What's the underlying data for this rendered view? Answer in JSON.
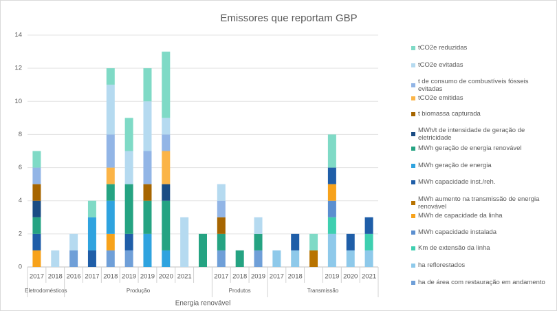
{
  "chart_data": {
    "type": "bar",
    "stacked": true,
    "title": "Emissores que reportam GBP",
    "supergroup": "Energia renovável",
    "groups": [
      {
        "label": "Eletrodomésticos",
        "categories": [
          "2017",
          "2018"
        ]
      },
      {
        "label": "Produção",
        "categories": [
          "2016",
          "2017",
          "2018",
          "2019",
          "2019",
          "2020",
          "2021",
          null
        ]
      },
      {
        "label": "Produtos",
        "categories": [
          "2017",
          "2018",
          "2019"
        ]
      },
      {
        "label": "Transmissão",
        "categories": [
          "2017",
          "2018",
          null,
          "2019",
          "2020",
          "2021"
        ]
      }
    ],
    "ylim": [
      0,
      14
    ],
    "yticks": [
      0,
      2,
      4,
      6,
      8,
      10,
      12,
      14
    ],
    "grid": true,
    "legend": "right",
    "series": [
      {
        "name": "ha de área com restauração em andamento",
        "color": "#6f9fd8",
        "values": [
          null,
          null,
          1,
          null,
          1,
          1,
          null,
          null,
          null,
          null,
          1,
          null,
          1,
          null,
          null,
          null,
          null,
          null,
          null
        ]
      },
      {
        "name": "ha reflorestados",
        "color": "#8ec9ea",
        "values": [
          null,
          null,
          null,
          null,
          null,
          null,
          null,
          null,
          null,
          null,
          null,
          null,
          null,
          1,
          1,
          null,
          2,
          1,
          1
        ]
      },
      {
        "name": "Km de extensão da linha",
        "color": "#3ecfb0",
        "values": [
          null,
          null,
          null,
          null,
          null,
          null,
          null,
          null,
          null,
          null,
          null,
          null,
          null,
          null,
          null,
          null,
          1,
          null,
          1
        ]
      },
      {
        "name": "MWh capacidade instalada",
        "color": "#5b8fd0",
        "values": [
          null,
          null,
          null,
          null,
          null,
          null,
          null,
          null,
          null,
          null,
          null,
          null,
          null,
          null,
          null,
          null,
          1,
          null,
          null
        ]
      },
      {
        "name": "MWh de capacidade da linha",
        "color": "#f7a21b",
        "values": [
          1,
          null,
          null,
          null,
          1,
          null,
          null,
          null,
          null,
          null,
          null,
          null,
          null,
          null,
          null,
          null,
          1,
          null,
          null
        ]
      },
      {
        "name": "MWh aumento na transmissão de energia renovável",
        "color": "#b87300",
        "values": [
          null,
          null,
          null,
          null,
          null,
          null,
          null,
          null,
          null,
          null,
          null,
          null,
          null,
          null,
          null,
          1,
          null,
          null,
          null
        ]
      },
      {
        "name": "MWh capacidade inst./reh.",
        "color": "#1f5ea8",
        "values": [
          1,
          null,
          null,
          1,
          null,
          1,
          null,
          null,
          null,
          null,
          null,
          null,
          null,
          null,
          1,
          null,
          1,
          1,
          1
        ]
      },
      {
        "name": "MWh geração de energia",
        "color": "#2fa3df",
        "values": [
          null,
          null,
          null,
          2,
          2,
          null,
          2,
          1,
          null,
          null,
          null,
          null,
          null,
          null,
          null,
          null,
          null,
          null,
          null
        ]
      },
      {
        "name": "MWh geração de energia renovável",
        "color": "#25a382",
        "values": [
          1,
          null,
          null,
          null,
          1,
          3,
          2,
          3,
          null,
          2,
          1,
          1,
          1,
          null,
          null,
          null,
          null,
          null,
          null
        ]
      },
      {
        "name": "MWh/t de intensidade de geração de eletricidade",
        "color": "#1a4c84",
        "values": [
          1,
          null,
          null,
          null,
          null,
          null,
          null,
          1,
          null,
          null,
          null,
          null,
          null,
          null,
          null,
          null,
          null,
          null,
          null
        ]
      },
      {
        "name": "t biomassa capturada",
        "color": "#a66500",
        "values": [
          1,
          null,
          null,
          null,
          null,
          null,
          1,
          null,
          null,
          null,
          1,
          null,
          null,
          null,
          null,
          null,
          null,
          null,
          null
        ]
      },
      {
        "name": "tCO2e emitidas",
        "color": "#fbb447",
        "values": [
          null,
          null,
          null,
          null,
          1,
          null,
          null,
          2,
          null,
          null,
          null,
          null,
          null,
          null,
          null,
          null,
          null,
          null,
          null
        ]
      },
      {
        "name": "t de consumo de combustíveis fósseis evitadas",
        "color": "#92b5e6",
        "values": [
          1,
          null,
          null,
          null,
          2,
          null,
          2,
          1,
          null,
          null,
          1,
          null,
          null,
          null,
          null,
          null,
          null,
          null,
          null
        ]
      },
      {
        "name": "tCO2e evitadas",
        "color": "#b5daf0",
        "values": [
          null,
          1,
          1,
          null,
          3,
          2,
          3,
          1,
          3,
          null,
          1,
          null,
          1,
          null,
          null,
          null,
          null,
          null,
          null
        ]
      },
      {
        "name": "tCO2e reduzidas",
        "color": "#7fdac6",
        "values": [
          1,
          null,
          null,
          1,
          1,
          2,
          2,
          4,
          null,
          null,
          null,
          null,
          null,
          null,
          null,
          1,
          2,
          null,
          null
        ]
      }
    ]
  }
}
